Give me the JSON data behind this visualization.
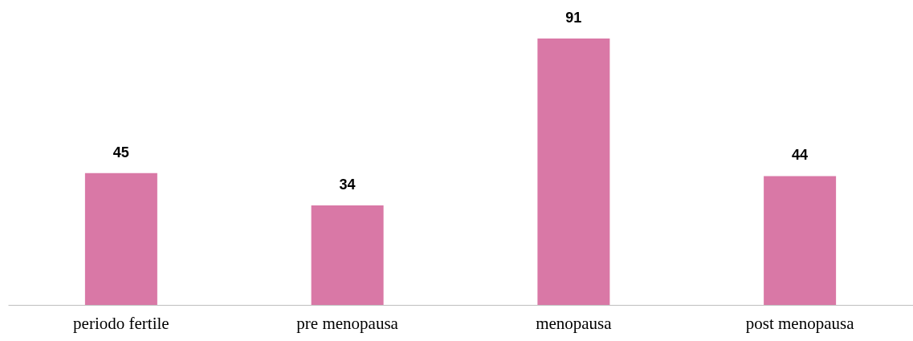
{
  "chart_data": {
    "type": "bar",
    "categories": [
      "periodo fertile",
      "pre menopausa",
      "menopausa",
      "post menopausa"
    ],
    "values": [
      45,
      34,
      91,
      44
    ],
    "color": "#d978a6",
    "data_labels": true
  }
}
